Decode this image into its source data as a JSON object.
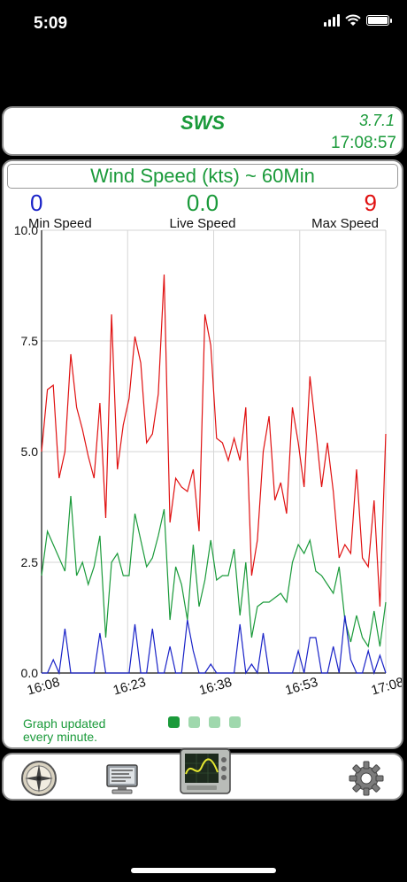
{
  "status_bar": {
    "time": "5:09"
  },
  "header": {
    "app_name": "SWS",
    "version": "3.7.1",
    "clock": "17:08:57"
  },
  "main": {
    "title": "Wind Speed (kts) ~ 60Min",
    "stats": {
      "min": {
        "value": "0",
        "label": "Min Speed",
        "color": "#1a23c8"
      },
      "live": {
        "value": "0.0",
        "label": "Live Speed",
        "color": "#1a9a3a"
      },
      "max": {
        "value": "9",
        "label": "Max Speed",
        "color": "#e01010"
      }
    },
    "footer_note": [
      "Graph updated",
      "every minute."
    ],
    "page_dots": {
      "count": 4,
      "active": 0,
      "active_color": "#1a9a3a",
      "inactive_color": "#9fd8ad"
    }
  },
  "chart_data": {
    "type": "line",
    "title": "",
    "xlabel": "",
    "ylabel": "",
    "ylim": [
      0,
      10
    ],
    "xlim": [
      0,
      60
    ],
    "grid": true,
    "y_ticks": [
      "0.0",
      "2.5",
      "5.0",
      "7.5",
      "10.0"
    ],
    "x_ticks": [
      {
        "label": "16:08",
        "minute": 0
      },
      {
        "label": "16:23",
        "minute": 15
      },
      {
        "label": "16:38",
        "minute": 30
      },
      {
        "label": "16:53",
        "minute": 45
      },
      {
        "label": "17:08",
        "minute": 60
      }
    ],
    "series": [
      {
        "key": "max",
        "color": "#e01010",
        "values": [
          5.0,
          6.4,
          6.5,
          4.4,
          5.0,
          7.2,
          6.0,
          5.5,
          4.9,
          4.4,
          6.1,
          3.5,
          8.1,
          4.6,
          5.6,
          6.2,
          7.6,
          7.0,
          5.2,
          5.4,
          6.3,
          9.0,
          3.4,
          4.4,
          4.2,
          4.1,
          4.6,
          3.2,
          8.1,
          7.4,
          5.3,
          5.2,
          4.8,
          5.3,
          4.8,
          6.0,
          2.2,
          3.0,
          5.0,
          5.8,
          3.9,
          4.3,
          3.6,
          6.0,
          5.2,
          4.2,
          6.7,
          5.5,
          4.2,
          5.2,
          4.1,
          2.6,
          2.9,
          2.7,
          4.6,
          2.6,
          2.4,
          3.9,
          1.5,
          5.4
        ]
      },
      {
        "key": "live",
        "color": "#1a9a3a",
        "values": [
          2.2,
          3.2,
          2.9,
          2.6,
          2.3,
          4.0,
          2.2,
          2.5,
          2.0,
          2.4,
          3.1,
          0.8,
          2.5,
          2.7,
          2.2,
          2.2,
          3.6,
          3.0,
          2.4,
          2.6,
          3.1,
          3.7,
          1.2,
          2.4,
          2.0,
          1.2,
          2.9,
          1.5,
          2.1,
          3.0,
          2.1,
          2.2,
          2.2,
          2.8,
          1.3,
          2.5,
          0.8,
          1.5,
          1.6,
          1.6,
          1.7,
          1.8,
          1.6,
          2.5,
          2.9,
          2.7,
          3.0,
          2.3,
          2.2,
          2.0,
          1.8,
          2.4,
          1.2,
          0.7,
          1.3,
          0.8,
          0.6,
          1.4,
          0.6,
          1.6
        ]
      },
      {
        "key": "min",
        "color": "#1a23c8",
        "values": [
          0,
          0,
          0.3,
          0,
          1.0,
          0,
          0,
          0,
          0,
          0,
          0.9,
          0,
          0,
          0,
          0,
          0,
          1.1,
          0,
          0,
          1.0,
          0,
          0,
          0.6,
          0,
          0,
          1.2,
          0.5,
          0,
          0,
          0.2,
          0,
          0,
          0,
          0,
          1.1,
          0,
          0.2,
          0,
          0.9,
          0,
          0,
          0,
          0,
          0,
          0.5,
          0,
          0.8,
          0.8,
          0,
          0,
          0.6,
          0,
          1.3,
          0.3,
          0,
          0,
          0.5,
          0,
          0.4,
          0
        ]
      }
    ]
  },
  "toolbar": {
    "items": [
      {
        "name": "compass-icon"
      },
      {
        "name": "monitor-icon"
      },
      {
        "name": "graph-icon",
        "active": true
      },
      {
        "name": "gear-icon"
      }
    ]
  }
}
